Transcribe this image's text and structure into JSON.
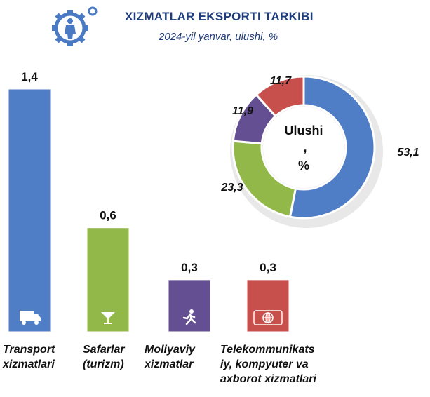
{
  "header": {
    "title": "XIZMATLAR EKSPORTI TARKIBI",
    "subtitle": "2024-yil yanvar, ulushi, %"
  },
  "colors": {
    "title": "#1f3d7a",
    "logo": "#4a7ac4",
    "transport": "#4f7ec6",
    "tourism": "#93b84a",
    "finance": "#654f93",
    "telecom": "#c74f4c"
  },
  "chart_data": [
    {
      "type": "bar",
      "categories": [
        "Transport xizmatlari",
        "Safarlar (turizm)",
        "Moliyaviy xizmatlar",
        "Telekommunikatsiy, kompyuter va axborot xizmatlari"
      ],
      "category_lines": [
        [
          "Transport",
          "xizmatlari"
        ],
        [
          "Safarlar",
          "(turizm)"
        ],
        [
          "Moliyaviy",
          "xizmatlar"
        ],
        [
          "Telekommunikats",
          "iy, kompyuter va",
          "axborot xizmatlari"
        ]
      ],
      "values": [
        1.4,
        0.6,
        0.3,
        0.3
      ],
      "value_labels": [
        "1,4",
        "0,6",
        "0,3",
        "0,3"
      ],
      "icons": [
        "truck-icon",
        "cocktail-glass-icon",
        "running-person-icon",
        "globe-card-icon"
      ],
      "ylim": [
        0,
        1.4
      ],
      "grid": false
    },
    {
      "type": "pie",
      "donut": true,
      "center_label": [
        "Ulushi",
        ",",
        "%"
      ],
      "slices": [
        {
          "value": 53.1,
          "label": "53,1",
          "color_key": "transport"
        },
        {
          "value": 23.3,
          "label": "23,3",
          "color_key": "tourism"
        },
        {
          "value": 11.9,
          "label": "11,9",
          "color_key": "finance"
        },
        {
          "value": 11.7,
          "label": "11,7",
          "color_key": "telecom"
        }
      ]
    }
  ]
}
